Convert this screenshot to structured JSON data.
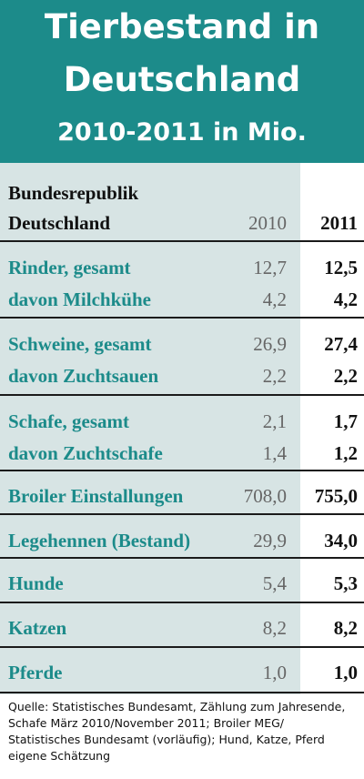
{
  "header": {
    "title_line1": "Tierbestand in",
    "title_line2": "Deutschland",
    "subtitle": "2010-2011 in Mio."
  },
  "table": {
    "region_line1": "Bundesrepublik",
    "region_line2": "Deutschland",
    "year1": "2010",
    "year2": "2011",
    "rows": [
      {
        "label": "Rinder, gesamt",
        "v2010": "12,7",
        "v2011": "12,5"
      },
      {
        "label": "davon Milchkühe",
        "v2010": "4,2",
        "v2011": "4,2"
      },
      {
        "label": "Schweine, gesamt",
        "v2010": "26,9",
        "v2011": "27,4"
      },
      {
        "label": "davon Zuchtsauen",
        "v2010": "2,2",
        "v2011": "2,2"
      },
      {
        "label": "Schafe, gesamt",
        "v2010": "2,1",
        "v2011": "1,7"
      },
      {
        "label": "davon Zuchtschafe",
        "v2010": "1,4",
        "v2011": "1,2"
      },
      {
        "label": "Broiler Einstallungen",
        "v2010": "708,0",
        "v2011": "755,0"
      },
      {
        "label": "Legehennen (Bestand)",
        "v2010": "29,9",
        "v2011": "34,0"
      },
      {
        "label": "Hunde",
        "v2010": "5,4",
        "v2011": "5,3"
      },
      {
        "label": "Katzen",
        "v2010": "8,2",
        "v2011": "8,2"
      },
      {
        "label": "Pferde",
        "v2010": "1,0",
        "v2011": "1,0"
      }
    ]
  },
  "source": {
    "line1": "Quelle: Statistisches Bundesamt, Zählung zum Jahresende,",
    "line2": "Schafe März 2010/November 2011; Broiler MEG/",
    "line3": "Statistisches Bundesamt (vorläufig); Hund, Katze, Pferd",
    "line4": "eigene Schätzung"
  },
  "colors": {
    "header_bg": "#1c8b8a",
    "table_bg": "#d7e4e4",
    "label_text": "#1c8b8a"
  }
}
